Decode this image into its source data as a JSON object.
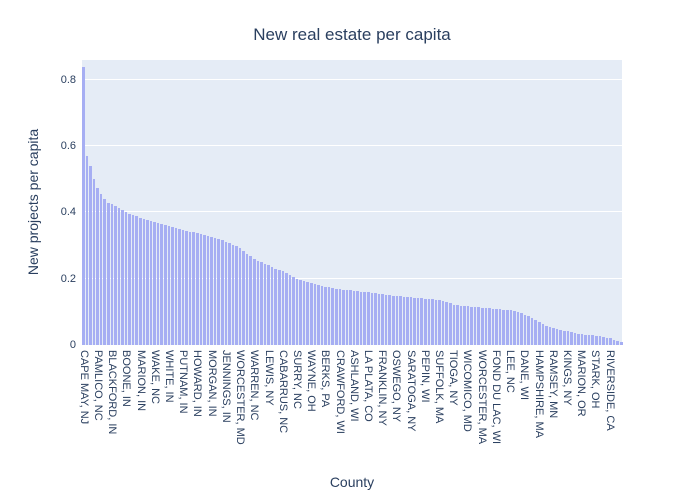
{
  "title": "New real estate per capita",
  "colors": {
    "bar": "#a6aef3",
    "plot_background": "#e5ecf6",
    "gridline": "#ffffff",
    "text": "#2a3f5f",
    "page_background": "#ffffff"
  },
  "chart_data": {
    "type": "bar",
    "title": "New real estate per capita",
    "xlabel": "County",
    "ylabel": "New projects per capita",
    "ylim": [
      0,
      0.86
    ],
    "yticks": [
      "0",
      "0.2",
      "0.4",
      "0.6",
      "0.8"
    ],
    "ytick_values": [
      0,
      0.2,
      0.4,
      0.6,
      0.8
    ],
    "grid": true,
    "legend": false,
    "tick_every": 4,
    "tick_labels": [
      "CAPE MAY, NJ",
      "PAMLICO, NC",
      "BLACKFORD, IN",
      "BOONE, IN",
      "MARION, IN",
      "WAKE, NC",
      "WHITE, IN",
      "PUTNAM, IN",
      "HOWARD, IN",
      "MORGAN, IN",
      "JENNINGS, IN",
      "WORCESTER, MD",
      "WARREN, NC",
      "LEWIS, NY",
      "CABARRUS, NC",
      "SURRY, NC",
      "WAYNE, OH",
      "BERKS, PA",
      "CRAWFORD, WI",
      "ASHLAND, WI",
      "LA PLATA, CO",
      "FRANKLIN, NY",
      "OSWEGO, NY",
      "SARATOGA, NY",
      "PEPIN, WI",
      "SUFFOLK, MA",
      "TIOGA, NY",
      "WICOMICO, MD",
      "WORCESTER, MA",
      "FOND DU LAC, WI",
      "LEE, NC",
      "DANE, WI",
      "HAMPSHIRE, MA",
      "RAMSEY, MN",
      "KINGS, NY",
      "MARION, OR",
      "STARK, OH",
      "RIVERSIDE, CA"
    ],
    "values": [
      0.84,
      0.57,
      0.54,
      0.5,
      0.475,
      0.455,
      0.44,
      0.43,
      0.425,
      0.418,
      0.412,
      0.406,
      0.4,
      0.396,
      0.392,
      0.388,
      0.384,
      0.38,
      0.376,
      0.373,
      0.37,
      0.367,
      0.364,
      0.362,
      0.36,
      0.357,
      0.354,
      0.351,
      0.348,
      0.345,
      0.342,
      0.34,
      0.338,
      0.335,
      0.332,
      0.33,
      0.327,
      0.324,
      0.32,
      0.316,
      0.312,
      0.308,
      0.303,
      0.298,
      0.293,
      0.285,
      0.276,
      0.268,
      0.26,
      0.255,
      0.25,
      0.245,
      0.24,
      0.235,
      0.23,
      0.226,
      0.222,
      0.217,
      0.212,
      0.206,
      0.2,
      0.196,
      0.192,
      0.189,
      0.186,
      0.183,
      0.18,
      0.178,
      0.176,
      0.174,
      0.172,
      0.17,
      0.168,
      0.167,
      0.166,
      0.165,
      0.164,
      0.162,
      0.161,
      0.16,
      0.159,
      0.157,
      0.156,
      0.154,
      0.153,
      0.151,
      0.15,
      0.149,
      0.148,
      0.147,
      0.146,
      0.145,
      0.144,
      0.143,
      0.142,
      0.141,
      0.14,
      0.139,
      0.138,
      0.137,
      0.136,
      0.133,
      0.13,
      0.126,
      0.122,
      0.12,
      0.119,
      0.118,
      0.117,
      0.116,
      0.115,
      0.114,
      0.113,
      0.112,
      0.111,
      0.11,
      0.109,
      0.108,
      0.107,
      0.106,
      0.105,
      0.103,
      0.1,
      0.096,
      0.092,
      0.087,
      0.081,
      0.075,
      0.069,
      0.063,
      0.058,
      0.054,
      0.051,
      0.048,
      0.045,
      0.043,
      0.041,
      0.038,
      0.036,
      0.034,
      0.032,
      0.031,
      0.03,
      0.029,
      0.028,
      0.026,
      0.024,
      0.022,
      0.02,
      0.016,
      0.012,
      0.008
    ]
  }
}
